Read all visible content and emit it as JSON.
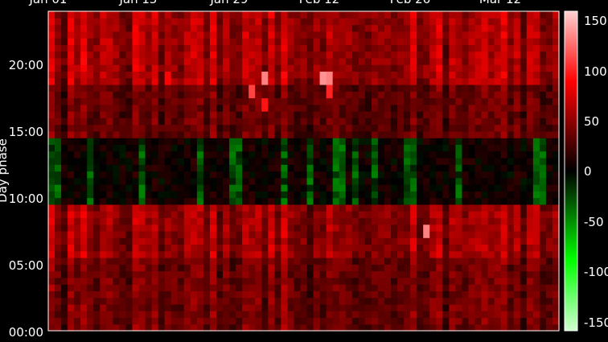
{
  "chart_data": {
    "type": "heatmap",
    "title": "",
    "xlabel": "",
    "ylabel": "Day phase",
    "x_ticks": [
      "Jan 01",
      "Jan 15",
      "Jan 29",
      "Feb 12",
      "Feb 26",
      "Mar 12"
    ],
    "y_ticks": [
      "00:00",
      "05:00",
      "10:00",
      "15:00",
      "20:00"
    ],
    "y_range_hours": [
      0,
      24
    ],
    "colorbar": {
      "ticks": [
        "150",
        "100",
        "50",
        "0",
        "-50",
        "-100",
        "-150"
      ],
      "range": [
        -165,
        165
      ],
      "positive_color": "#ff0000",
      "negative_color": "#00ff00",
      "zero_color": "#000000"
    },
    "grid": false,
    "days": 79,
    "bands": [
      {
        "from_hour": 0.0,
        "to_hour": 5.6,
        "base": 42
      },
      {
        "from_hour": 5.6,
        "to_hour": 9.6,
        "base": 58
      },
      {
        "from_hour": 9.6,
        "to_hour": 14.5,
        "base": 6
      },
      {
        "from_hour": 14.5,
        "to_hour": 18.5,
        "base": 38
      },
      {
        "from_hour": 18.5,
        "to_hour": 24.0,
        "base": 62
      }
    ],
    "hotspots": [
      {
        "day": 33,
        "hour": 19.2,
        "value": 140
      },
      {
        "day": 31,
        "hour": 18.2,
        "value": 120
      },
      {
        "day": 33,
        "hour": 16.8,
        "value": 105
      },
      {
        "day": 42,
        "hour": 19.2,
        "value": 145
      },
      {
        "day": 43,
        "hour": 18.8,
        "value": 140
      },
      {
        "day": 58,
        "hour": 7.6,
        "value": 140
      },
      {
        "day": 43,
        "hour": 18.0,
        "value": 110
      },
      {
        "day": 18,
        "hour": 18.8,
        "value": 100
      }
    ],
    "negative_columns": [
      0,
      1,
      6,
      14,
      23,
      28,
      29,
      36,
      40,
      44,
      45,
      47,
      50,
      55,
      56,
      63,
      75,
      76
    ]
  }
}
